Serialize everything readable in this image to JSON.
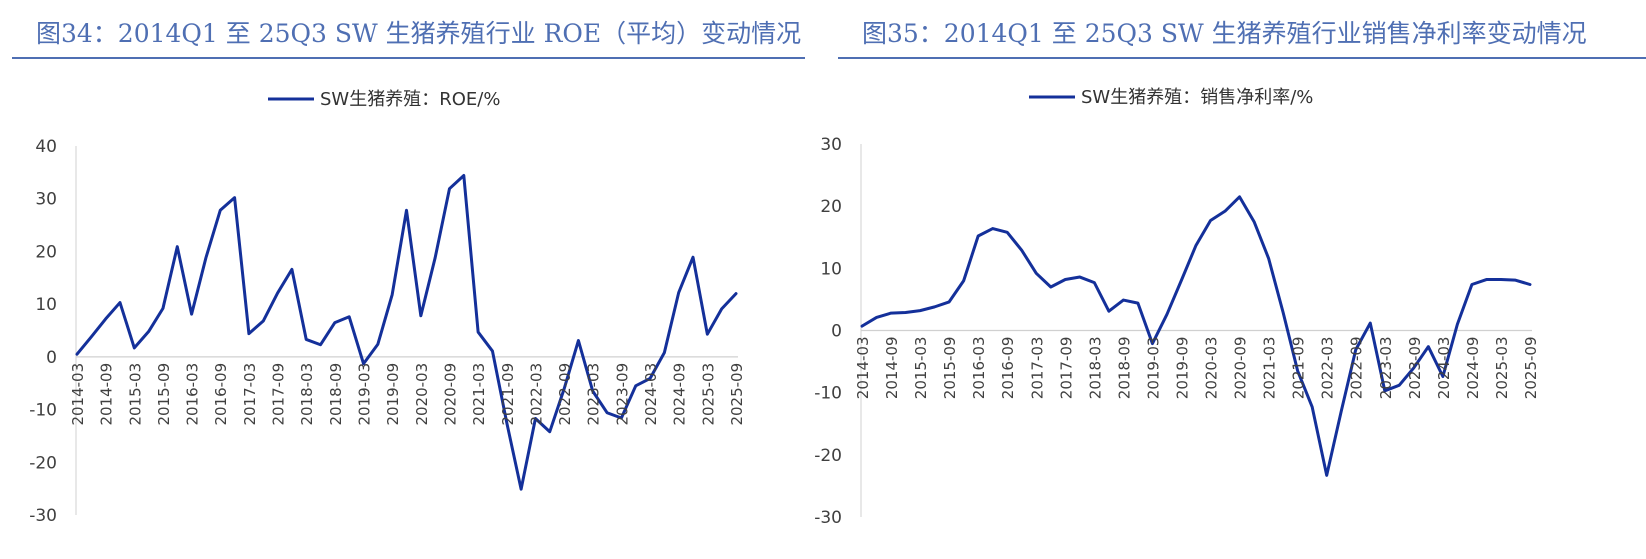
{
  "figures": [
    {
      "title": "图34：2014Q1 至 25Q3 SW 生猪养殖行业 ROE（平均）变动情况",
      "legend": "SW生猪养殖：ROE/%"
    },
    {
      "title": "图35：2014Q1 至 25Q3 SW 生猪养殖行业销售净利率变动情况",
      "legend": "SW生猪养殖：销售净利率/%"
    }
  ],
  "colors": {
    "title": "#4f6fb3",
    "line": "#14309a",
    "axis": "#d0d0d0"
  },
  "chart_data": [
    {
      "type": "line",
      "title": "",
      "xlabel": "",
      "ylabel": "",
      "ylim": [
        -30,
        40
      ],
      "yticks": [
        40,
        30,
        20,
        10,
        0,
        -10,
        -20,
        -30
      ],
      "grid": false,
      "legend_position": "top",
      "x": [
        "2014-03",
        "2014-06",
        "2014-09",
        "2014-12",
        "2015-03",
        "2015-06",
        "2015-09",
        "2015-12",
        "2016-03",
        "2016-06",
        "2016-09",
        "2016-12",
        "2017-03",
        "2017-06",
        "2017-09",
        "2017-12",
        "2018-03",
        "2018-06",
        "2018-09",
        "2018-12",
        "2019-03",
        "2019-06",
        "2019-09",
        "2019-12",
        "2020-03",
        "2020-06",
        "2020-09",
        "2020-12",
        "2021-03",
        "2021-06",
        "2021-09",
        "2021-12",
        "2022-03",
        "2022-06",
        "2022-09",
        "2022-12",
        "2023-03",
        "2023-06",
        "2023-09",
        "2023-12",
        "2024-03",
        "2024-06",
        "2024-09",
        "2024-12",
        "2025-03",
        "2025-06",
        "2025-09"
      ],
      "xtick_labels": [
        "2014-03",
        "2014-09",
        "2015-03",
        "2015-09",
        "2016-03",
        "2016-09",
        "2017-03",
        "2017-09",
        "2018-03",
        "2018-09",
        "2019-03",
        "2019-09",
        "2020-03",
        "2020-09",
        "2021-03",
        "2021-09",
        "2022-03",
        "2022-09",
        "2023-03",
        "2023-09",
        "2024-03",
        "2024-09",
        "2025-03",
        "2025-09"
      ],
      "series": [
        {
          "name": "SW生猪养殖：ROE/%",
          "values": [
            0.5,
            3.8,
            7.2,
            10.3,
            1.7,
            4.8,
            9.2,
            20.9,
            8.1,
            18.8,
            27.8,
            30.2,
            4.4,
            6.8,
            12.1,
            16.6,
            3.3,
            2.3,
            6.5,
            7.6,
            -1.3,
            2.4,
            11.8,
            27.8,
            7.8,
            18.8,
            31.9,
            34.4,
            4.7,
            1.1,
            -12.5,
            -25.1,
            -11.7,
            -14.2,
            -6.1,
            3.1,
            -6.5,
            -10.6,
            -11.6,
            -5.5,
            -4.1,
            0.8,
            12.2,
            18.9,
            4.3,
            9.1,
            12.0
          ]
        }
      ]
    },
    {
      "type": "line",
      "title": "",
      "xlabel": "",
      "ylabel": "",
      "ylim": [
        -30,
        30
      ],
      "yticks": [
        30,
        20,
        10,
        0,
        -10,
        -20,
        -30
      ],
      "grid": false,
      "legend_position": "top",
      "x": [
        "2014-03",
        "2014-06",
        "2014-09",
        "2014-12",
        "2015-03",
        "2015-06",
        "2015-09",
        "2015-12",
        "2016-03",
        "2016-06",
        "2016-09",
        "2016-12",
        "2017-03",
        "2017-06",
        "2017-09",
        "2017-12",
        "2018-03",
        "2018-06",
        "2018-09",
        "2018-12",
        "2019-03",
        "2019-06",
        "2019-09",
        "2019-12",
        "2020-03",
        "2020-06",
        "2020-09",
        "2020-12",
        "2021-03",
        "2021-06",
        "2021-09",
        "2021-12",
        "2022-03",
        "2022-06",
        "2022-09",
        "2022-12",
        "2023-03",
        "2023-06",
        "2023-09",
        "2023-12",
        "2024-03",
        "2024-06",
        "2024-09",
        "2024-12",
        "2025-03",
        "2025-06",
        "2025-09"
      ],
      "xtick_labels": [
        "2014-03",
        "2014-09",
        "2015-03",
        "2015-09",
        "2016-03",
        "2016-09",
        "2017-03",
        "2017-09",
        "2018-03",
        "2018-09",
        "2019-03",
        "2019-09",
        "2020-03",
        "2020-09",
        "2021-03",
        "2021-09",
        "2022-03",
        "2022-09",
        "2023-03",
        "2023-09",
        "2024-03",
        "2024-09",
        "2025-03",
        "2025-09"
      ],
      "series": [
        {
          "name": "SW生猪养殖：销售净利率/%",
          "values": [
            0.7,
            2.1,
            2.8,
            2.9,
            3.2,
            3.8,
            4.6,
            8.0,
            15.2,
            16.4,
            15.8,
            12.9,
            9.2,
            7.0,
            8.2,
            8.6,
            7.7,
            3.1,
            4.9,
            4.4,
            -2.1,
            2.6,
            8.1,
            13.7,
            17.7,
            19.2,
            21.5,
            17.5,
            11.6,
            2.9,
            -6.5,
            -12.3,
            -23.3,
            -13.0,
            -3.1,
            1.2,
            -9.7,
            -8.8,
            -6.0,
            -2.6,
            -7.4,
            1.0,
            7.4,
            8.2,
            8.2,
            8.1,
            7.4
          ]
        }
      ]
    }
  ]
}
